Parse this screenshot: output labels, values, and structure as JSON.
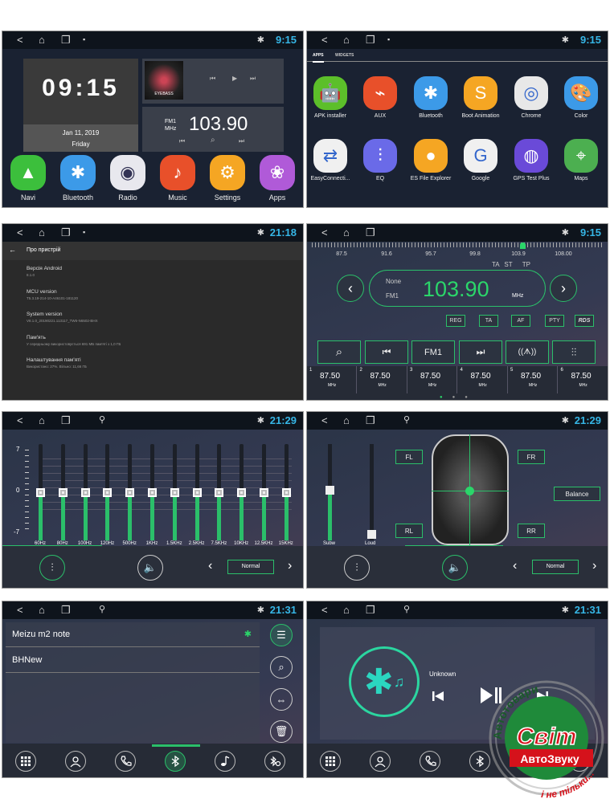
{
  "status": {
    "time_a": "9:15",
    "time_b": "21:18",
    "time_c": "21:29",
    "time_d": "21:31",
    "nav": [
      "<",
      "⌂",
      "❐",
      "▪"
    ],
    "bt": "✱"
  },
  "home": {
    "clock": "09:15",
    "date": "Jan 11, 2019",
    "day": "Friday",
    "album_text": "EYEBASS",
    "radio_band": "FM1",
    "radio_unit": "MHz",
    "radio_freq": "103.90",
    "apps": [
      {
        "label": "Navi",
        "icon": "navigation-icon",
        "glyph": "▲",
        "color": "#3cbf3c"
      },
      {
        "label": "Bluetooth",
        "icon": "bluetooth-icon",
        "glyph": "✱",
        "color": "#3c9ae8"
      },
      {
        "label": "Radio",
        "icon": "radio-icon",
        "glyph": "◉",
        "color": "#e8e8ee"
      },
      {
        "label": "Music",
        "icon": "music-icon",
        "glyph": "♪",
        "color": "#e8502a"
      },
      {
        "label": "Settings",
        "icon": "settings-icon",
        "glyph": "⚙",
        "color": "#f5a623"
      },
      {
        "label": "Apps",
        "icon": "apps-icon",
        "glyph": "❀",
        "color": "#b05ad8"
      }
    ]
  },
  "drawer": {
    "tabs": [
      "APPS",
      "WIDGETS"
    ],
    "apps": [
      {
        "label": "APK installer",
        "icon": "android-icon",
        "glyph": "🤖",
        "color": "#5cbf2a"
      },
      {
        "label": "AUX",
        "icon": "aux-icon",
        "glyph": "⌁",
        "color": "#e8502a"
      },
      {
        "label": "Bluetooth",
        "icon": "bluetooth-icon",
        "glyph": "✱",
        "color": "#3c9ae8"
      },
      {
        "label": "Boot Animation",
        "icon": "boot-animation-icon",
        "glyph": "S",
        "color": "#f5a623"
      },
      {
        "label": "Chrome",
        "icon": "chrome-icon",
        "glyph": "◎",
        "color": "#e8e8e8"
      },
      {
        "label": "Color",
        "icon": "color-palette-icon",
        "glyph": "🎨",
        "color": "#3c9ae8"
      },
      {
        "label": "EasyConnecti...",
        "icon": "easyconnect-icon",
        "glyph": "⇄",
        "color": "#f0f0f0"
      },
      {
        "label": "EQ",
        "icon": "eq-icon",
        "glyph": "⫶",
        "color": "#6a6ae8"
      },
      {
        "label": "ES File Explorer",
        "icon": "file-explorer-icon",
        "glyph": "●",
        "color": "#f5a623"
      },
      {
        "label": "Google",
        "icon": "google-icon",
        "glyph": "G",
        "color": "#f0f0f0"
      },
      {
        "label": "GPS Test Plus",
        "icon": "gps-icon",
        "glyph": "◍",
        "color": "#6a4ad8"
      },
      {
        "label": "Maps",
        "icon": "maps-icon",
        "glyph": "⌖",
        "color": "#4caf50"
      }
    ]
  },
  "about": {
    "title": "Про пристрій",
    "items": [
      {
        "t": "Версія Android",
        "s": "8.1.0"
      },
      {
        "t": "MCU version",
        "s": "T5.3.19-214-10-A46101-181120"
      },
      {
        "t": "System version",
        "s": "V8.1.0_20190221.113117_TW6-N6502-BHX"
      },
      {
        "t": "Пам'ять",
        "s": "У середньому використовується 691 МБ пам'яті з 1,0 ГБ"
      },
      {
        "t": "Налаштування пам'яті",
        "s": "Використано: 27%. Вільно: 11,66 ГБ"
      }
    ]
  },
  "radio": {
    "scale": [
      "87.5",
      "91.6",
      "95.7",
      "99.8",
      "103.9",
      "108.00"
    ],
    "scale_value": 103.9,
    "flags": [
      "TA",
      "ST",
      "TP"
    ],
    "ps": "None",
    "band": "FM1",
    "freq": "103.90",
    "unit": "MHz",
    "options": [
      "REG",
      "TA",
      "AF",
      "PTY",
      "RDS"
    ],
    "band_button": "FM1",
    "presets": [
      {
        "n": "1",
        "f": "87.50",
        "u": "MHz"
      },
      {
        "n": "2",
        "f": "87.50",
        "u": "MHz"
      },
      {
        "n": "3",
        "f": "87.50",
        "u": "MHz"
      },
      {
        "n": "4",
        "f": "87.50",
        "u": "MHz"
      },
      {
        "n": "5",
        "f": "87.50",
        "u": "MHz"
      },
      {
        "n": "6",
        "f": "87.50",
        "u": "MHz"
      }
    ]
  },
  "eq": {
    "axis": [
      "7",
      "0",
      "-7"
    ],
    "bands": [
      "60Hz",
      "80Hz",
      "100Hz",
      "120Hz",
      "500Hz",
      "1KHz",
      "1.5KHz",
      "2.5KHz",
      "7.5KHz",
      "10KHz",
      "12.5KHz",
      "15KHz"
    ],
    "values": [
      0,
      0,
      0,
      0,
      0,
      0,
      0,
      0,
      0,
      0,
      0,
      0
    ],
    "range": [
      -7,
      7
    ],
    "preset": "Normal",
    "accent": "#2bbf6a"
  },
  "balance": {
    "subw": "Subw",
    "loud": "Loud",
    "fl": "FL",
    "fr": "FR",
    "rl": "RL",
    "rr": "RR",
    "balance": "Balance",
    "preset": "Normal"
  },
  "btlist": {
    "devices": [
      "Meizu m2 note",
      "BHNew"
    ]
  },
  "btmusic": {
    "track": "Unknown"
  },
  "watermark": {
    "top": "Автотовари",
    "brand": "Світ",
    "sub": "АвтоЗвуку",
    "bottom": "і не тільки..."
  }
}
